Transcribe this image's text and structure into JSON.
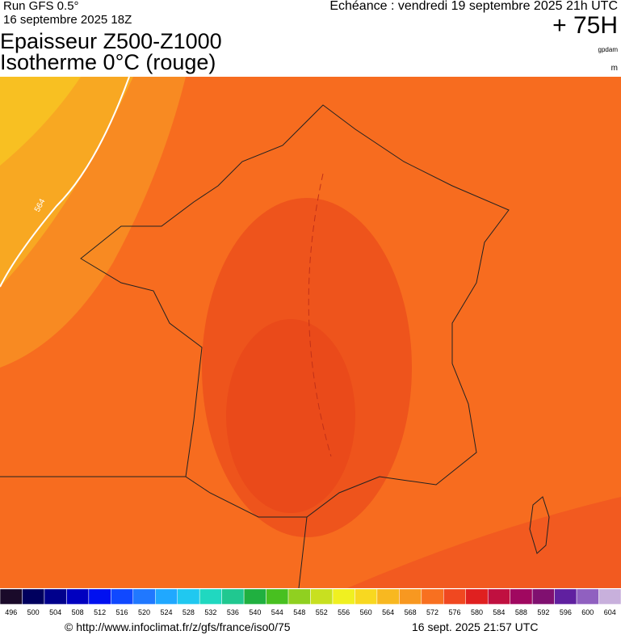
{
  "header": {
    "run": "Run GFS 0.5°",
    "run_date": "16 septembre 2025 18Z",
    "forecast_time": "Echéance : vendredi 19 septembre 2025 21h UTC",
    "lead": "+ 75H",
    "title_line1": "Epaisseur Z500-Z1000",
    "title_line2": "Isotherme 0°C (rouge)",
    "unit_top": "gpdam",
    "unit_bottom": "m"
  },
  "map": {
    "contour_label": "564"
  },
  "legend": {
    "items": [
      {
        "value": 496,
        "color": "#1a0a2a"
      },
      {
        "value": 500,
        "color": "#00005e"
      },
      {
        "value": 504,
        "color": "#00008c"
      },
      {
        "value": 508,
        "color": "#0000c0"
      },
      {
        "value": 512,
        "color": "#0010f0"
      },
      {
        "value": 516,
        "color": "#1048ff"
      },
      {
        "value": 520,
        "color": "#2078ff"
      },
      {
        "value": 524,
        "color": "#20a8ff"
      },
      {
        "value": 528,
        "color": "#20c8f0"
      },
      {
        "value": 532,
        "color": "#20d8c0"
      },
      {
        "value": 536,
        "color": "#20c890"
      },
      {
        "value": 540,
        "color": "#20b040"
      },
      {
        "value": 544,
        "color": "#48c020"
      },
      {
        "value": 548,
        "color": "#90d020"
      },
      {
        "value": 552,
        "color": "#c8e020"
      },
      {
        "value": 556,
        "color": "#f0f020"
      },
      {
        "value": 560,
        "color": "#f8d820"
      },
      {
        "value": 564,
        "color": "#f8b820"
      },
      {
        "value": 568,
        "color": "#f89820"
      },
      {
        "value": 572,
        "color": "#f87020"
      },
      {
        "value": 576,
        "color": "#f04820"
      },
      {
        "value": 580,
        "color": "#e02020"
      },
      {
        "value": 584,
        "color": "#c01040"
      },
      {
        "value": 588,
        "color": "#a00860"
      },
      {
        "value": 592,
        "color": "#801070"
      },
      {
        "value": 596,
        "color": "#6020a0"
      },
      {
        "value": 600,
        "color": "#9060c0"
      },
      {
        "value": 604,
        "color": "#c8b0dc"
      }
    ]
  },
  "footer": {
    "url": "© http://www.infoclimat.fr/z/gfs/france/iso0/75",
    "timestamp": "16 sept. 2025 21:57 UTC"
  }
}
